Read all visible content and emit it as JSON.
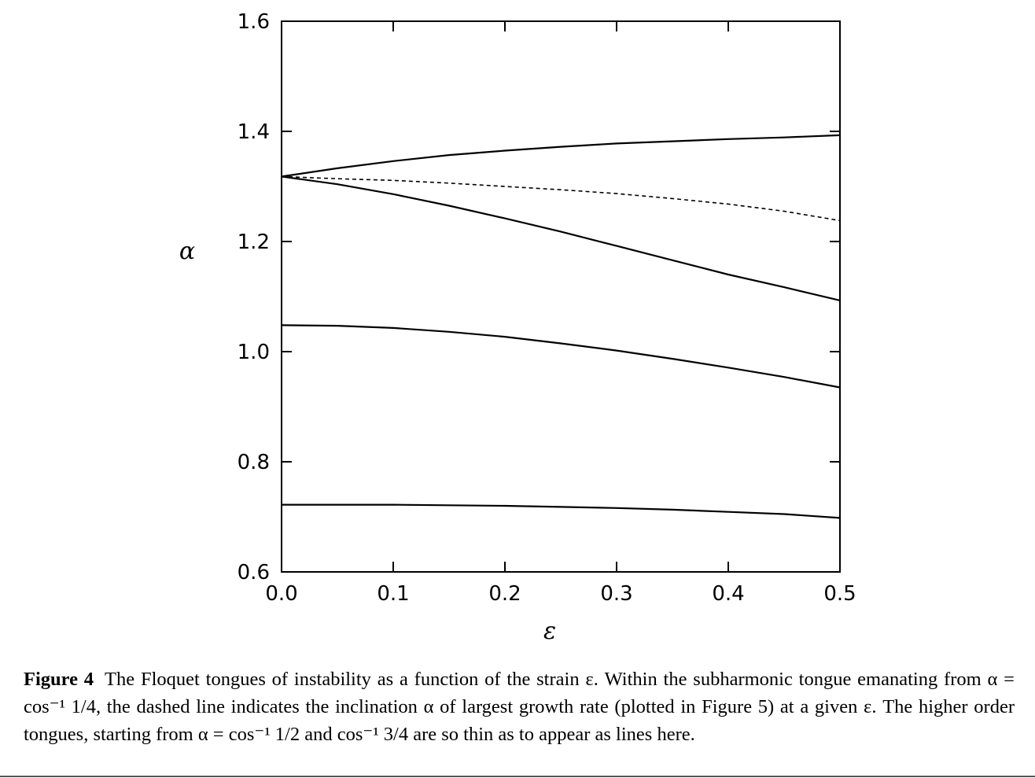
{
  "chart_data": {
    "type": "line",
    "title": "",
    "xlabel": "ε",
    "ylabel": "α",
    "xlim": [
      0.0,
      0.5
    ],
    "ylim": [
      0.6,
      1.6
    ],
    "x_ticks": [
      0.0,
      0.1,
      0.2,
      0.3,
      0.4,
      0.5
    ],
    "x_tick_labels": [
      "0.0",
      "0.1",
      "0.2",
      "0.3",
      "0.4",
      "0.5"
    ],
    "y_ticks": [
      0.6,
      0.8,
      1.0,
      1.2,
      1.4,
      1.6
    ],
    "y_tick_labels": [
      "0.6",
      "0.8",
      "1.0",
      "1.2",
      "1.4",
      "1.6"
    ],
    "grid": false,
    "legend": "none",
    "series": [
      {
        "style": "solid",
        "x": [
          0.0,
          0.05,
          0.1,
          0.15,
          0.2,
          0.25,
          0.3,
          0.35,
          0.4,
          0.45,
          0.5
        ],
        "y": [
          1.318,
          1.333,
          1.346,
          1.357,
          1.365,
          1.372,
          1.378,
          1.382,
          1.386,
          1.389,
          1.393
        ]
      },
      {
        "style": "dashed",
        "x": [
          0.0,
          0.05,
          0.1,
          0.15,
          0.2,
          0.25,
          0.3,
          0.35,
          0.4,
          0.45,
          0.5
        ],
        "y": [
          1.318,
          1.314,
          1.311,
          1.306,
          1.3,
          1.294,
          1.287,
          1.278,
          1.268,
          1.255,
          1.238
        ]
      },
      {
        "style": "solid",
        "x": [
          0.0,
          0.05,
          0.1,
          0.15,
          0.2,
          0.25,
          0.3,
          0.35,
          0.4,
          0.45,
          0.5
        ],
        "y": [
          1.318,
          1.304,
          1.286,
          1.265,
          1.242,
          1.218,
          1.192,
          1.166,
          1.14,
          1.117,
          1.093
        ]
      },
      {
        "style": "solid",
        "x": [
          0.0,
          0.05,
          0.1,
          0.15,
          0.2,
          0.25,
          0.3,
          0.35,
          0.4,
          0.45,
          0.5
        ],
        "y": [
          1.048,
          1.047,
          1.043,
          1.036,
          1.027,
          1.015,
          1.002,
          0.987,
          0.971,
          0.954,
          0.935
        ]
      },
      {
        "style": "solid",
        "x": [
          0.0,
          0.05,
          0.1,
          0.15,
          0.2,
          0.25,
          0.3,
          0.35,
          0.4,
          0.45,
          0.5
        ],
        "y": [
          0.722,
          0.722,
          0.722,
          0.721,
          0.72,
          0.718,
          0.716,
          0.713,
          0.709,
          0.705,
          0.698
        ]
      }
    ]
  },
  "caption": {
    "lead": "Figure 4",
    "text": "The Floquet tongues of instability as a function of the strain ε. Within the subharmonic tongue emanating from α = cos⁻¹ 1/4, the dashed line indicates the inclination α of largest growth rate (plotted in Figure 5) at a given ε. The higher order tongues, starting from α = cos⁻¹ 1/2 and cos⁻¹ 3/4 are so thin as to appear as lines here."
  }
}
